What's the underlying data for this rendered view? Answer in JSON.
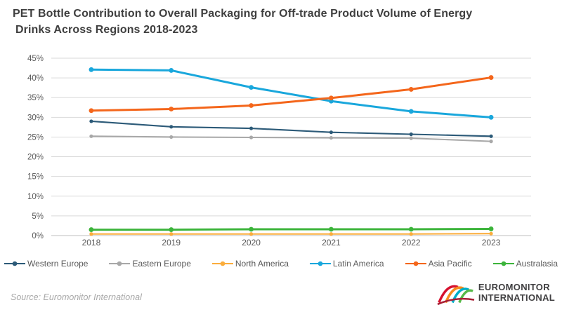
{
  "header": {
    "title_line1": "PET Bottle Contribution to Overall Packaging for Off-trade Product Volume of Energy",
    "title_line2": "Drinks Across Regions 2018-2023"
  },
  "footer": {
    "source": "Source: Euromonitor International",
    "logo_line1": "EUROMONITOR",
    "logo_line2": "INTERNATIONAL",
    "logo_mark_colors": [
      "#D6112E",
      "#F68B1F",
      "#00AEC7",
      "#56B948",
      "#A81D33"
    ]
  },
  "chart_data": {
    "type": "line",
    "title": "PET Bottle Contribution to Overall Packaging for Off-trade Product Volume of Energy Drinks Across Regions 2018-2023",
    "categories": [
      "2018",
      "2019",
      "2020",
      "2021",
      "2022",
      "2023"
    ],
    "series": [
      {
        "name": "Western Europe",
        "color": "#2C5A78",
        "thick": false,
        "values": [
          29.0,
          27.6,
          27.2,
          26.2,
          25.7,
          25.2
        ]
      },
      {
        "name": "Eastern Europe",
        "color": "#A8A8A8",
        "thick": false,
        "values": [
          25.2,
          25.0,
          24.9,
          24.8,
          24.7,
          23.9
        ]
      },
      {
        "name": "North America",
        "color": "#FBAD3C",
        "thick": false,
        "values": [
          0.4,
          0.4,
          0.4,
          0.4,
          0.4,
          0.5
        ]
      },
      {
        "name": "Latin America",
        "color": "#19A7DC",
        "thick": true,
        "values": [
          42.1,
          41.9,
          37.6,
          34.1,
          31.5,
          30.0
        ]
      },
      {
        "name": "Asia Pacific",
        "color": "#F4661B",
        "thick": true,
        "values": [
          31.7,
          32.1,
          33.0,
          34.9,
          37.1,
          40.1
        ]
      },
      {
        "name": "Australasia",
        "color": "#3CB43B",
        "thick": true,
        "values": [
          1.5,
          1.5,
          1.6,
          1.6,
          1.6,
          1.7
        ]
      }
    ],
    "xlabel": "",
    "ylabel": "",
    "ylim": [
      0,
      45
    ],
    "ytick_step": 5,
    "ytick_suffix": "%",
    "grid": true,
    "grid_color": "#D9D9D9",
    "axis_line_color": "#BFBFBF",
    "tick_label_color": "#595959",
    "legend_position": "bottom",
    "marker": "circle"
  }
}
